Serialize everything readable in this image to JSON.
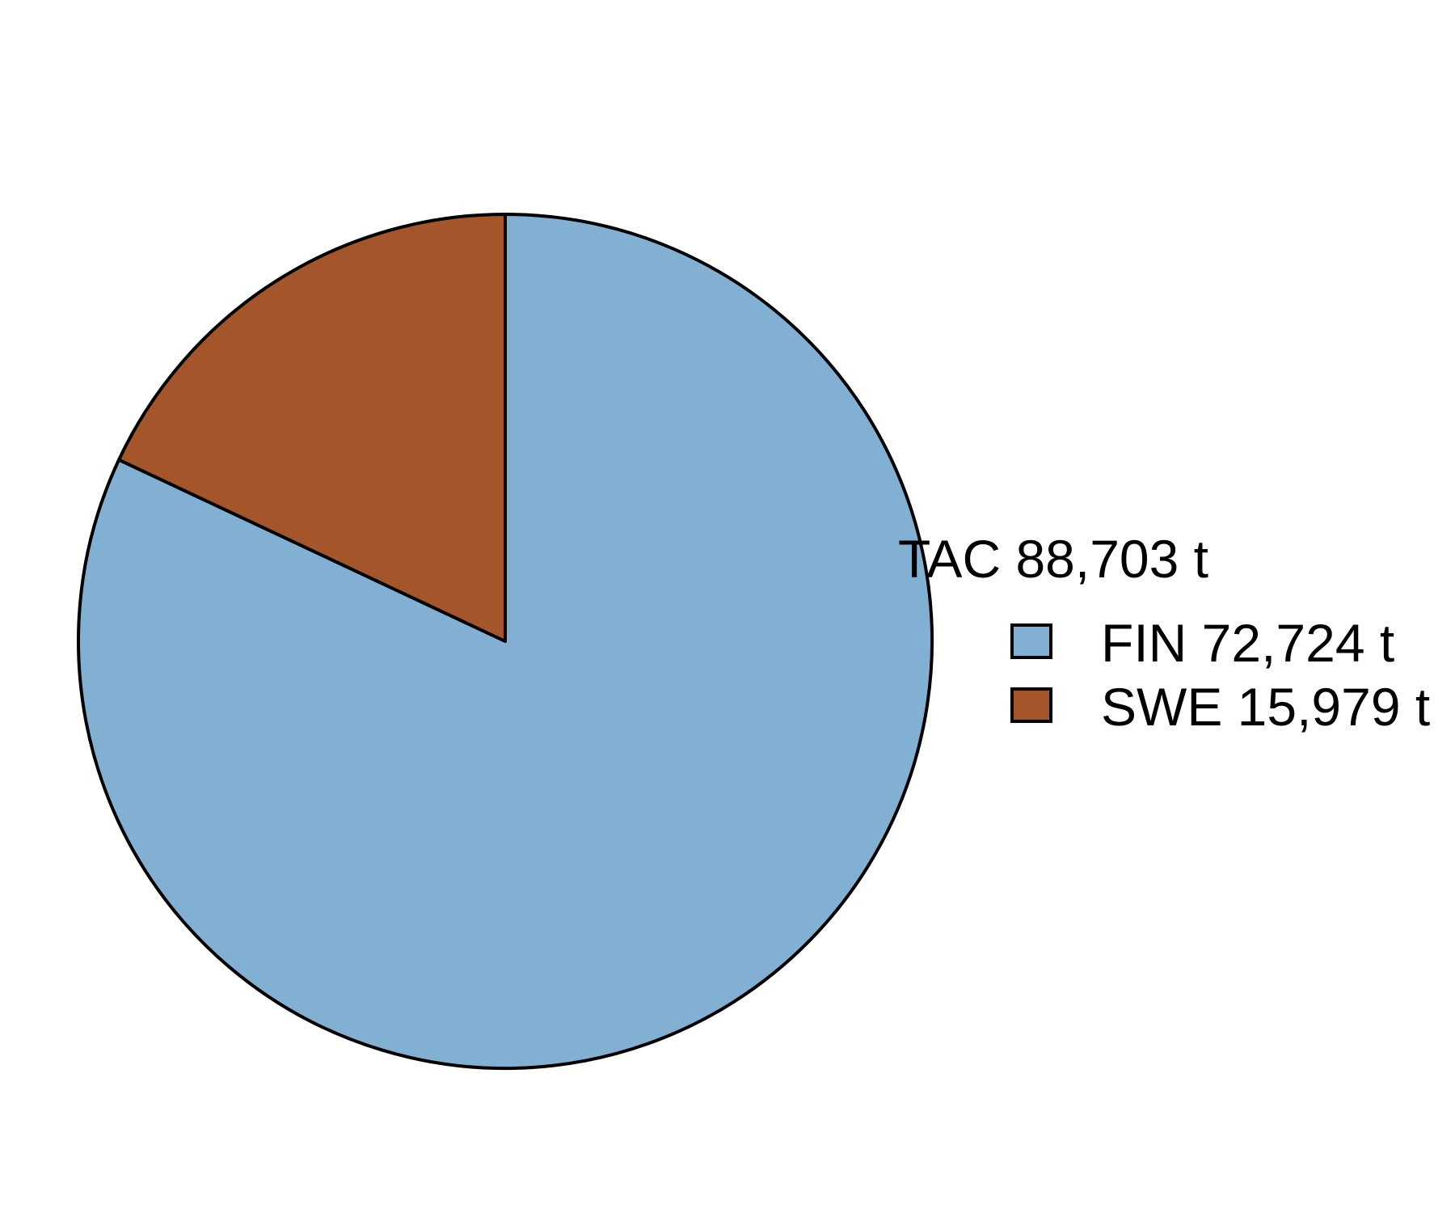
{
  "chart_data": {
    "type": "pie",
    "title": "",
    "legend": {
      "title": "TAC 88,703 t",
      "placement": "right"
    },
    "slices": [
      {
        "label": "FIN 72,724 t",
        "value": 72724,
        "color": "#82b0d2"
      },
      {
        "label": "SWE 15,979 t",
        "value": 15979,
        "color": "#a5552a"
      }
    ],
    "start": "12 o'clock",
    "direction": "clockwise"
  }
}
